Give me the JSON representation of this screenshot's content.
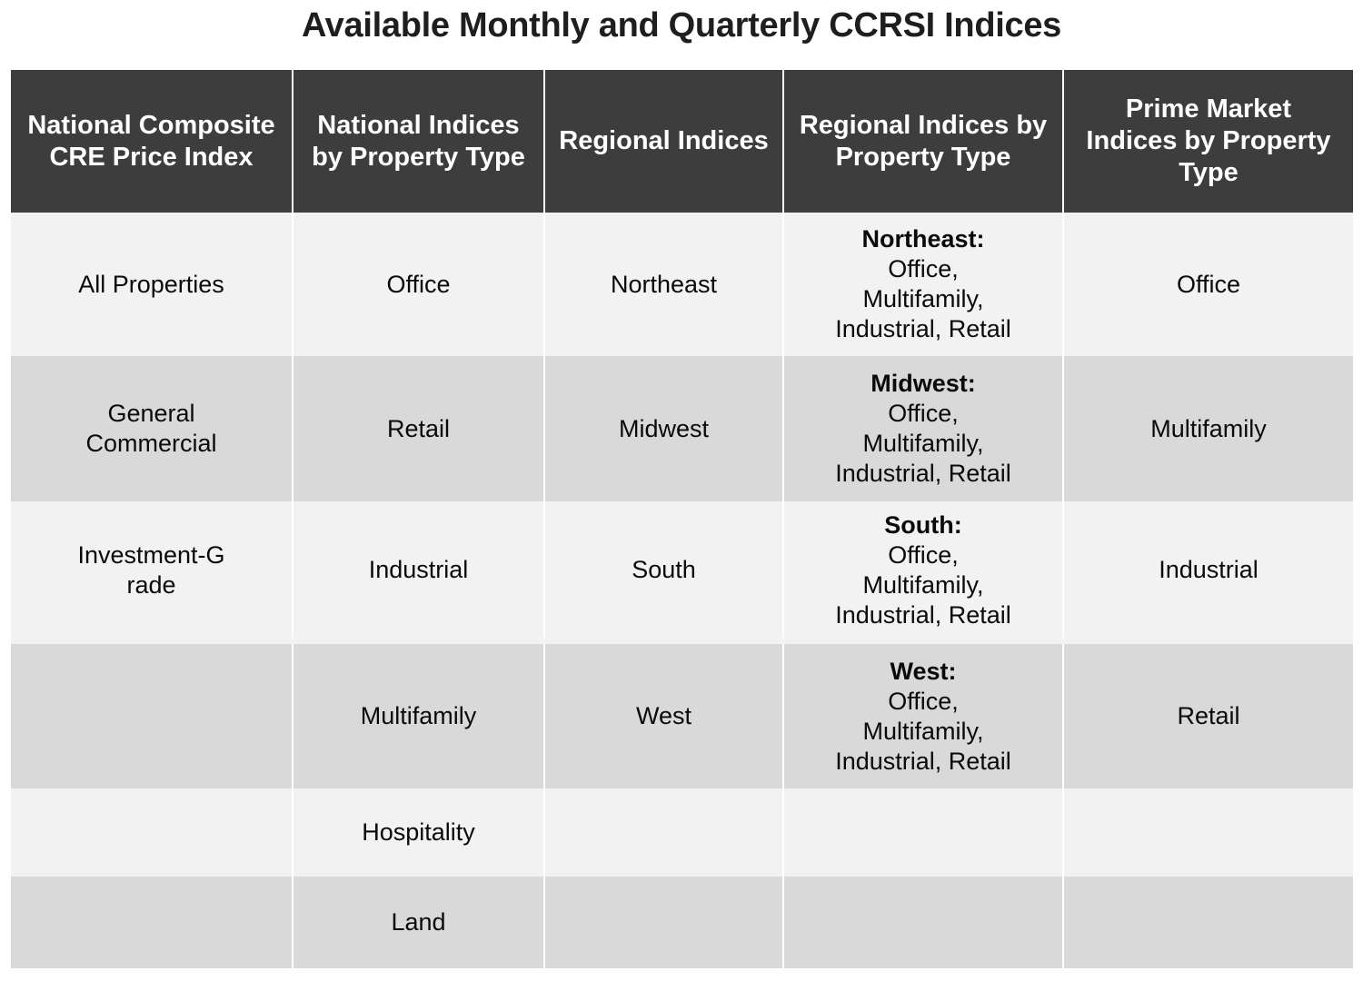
{
  "title": "Available Monthly and Quarterly CCRSI Indices",
  "headers": [
    "National Composite CRE Price Index",
    "National Indices by Property Type",
    "Regional Indices",
    "Regional Indices by Property Type",
    "Prime Market Indices by Property Type"
  ],
  "national_composite": [
    "All Properties",
    "General Commercial",
    "Investment-Grade",
    "",
    "",
    ""
  ],
  "national_by_type": [
    "Office",
    "Retail",
    "Industrial",
    "Multifamily",
    "Hospitality",
    "Land"
  ],
  "regional": [
    "Northeast",
    "Midwest",
    "South",
    "West",
    "",
    ""
  ],
  "regional_by_type": [
    {
      "region": "Northeast:",
      "line1": "Office,",
      "line2": "Multifamily,",
      "line3": "Industrial, Retail"
    },
    {
      "region": "Midwest:",
      "line1": "Office,",
      "line2": "Multifamily,",
      "line3": "Industrial, Retail"
    },
    {
      "region": "South:",
      "line1": "Office,",
      "line2": "Multifamily,",
      "line3": "Industrial, Retail"
    },
    {
      "region": "West:",
      "line1": "Office,",
      "line2": "Multifamily,",
      "line3": "Industrial, Retail"
    }
  ],
  "prime_market": [
    "Office",
    "Multifamily",
    "Industrial",
    "Retail",
    "",
    ""
  ],
  "colors": {
    "header_bg": "#3d3d3d",
    "header_text": "#ffffff",
    "row_light": "#f2f2f2",
    "row_dark": "#d9d9d9"
  }
}
